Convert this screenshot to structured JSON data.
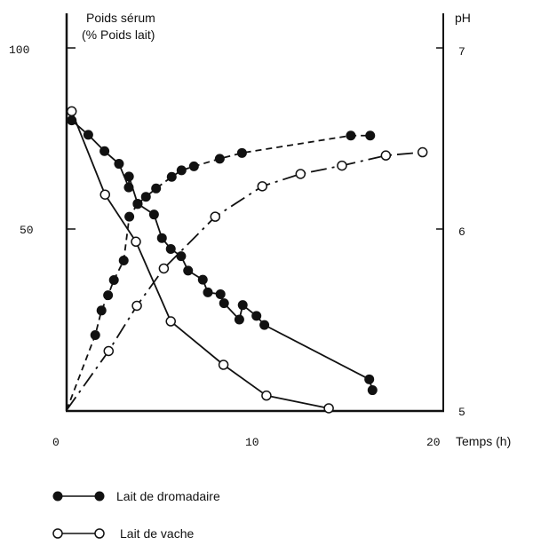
{
  "chart_data": {
    "type": "line",
    "title": "",
    "ylabel_left": [
      "Poids sérum",
      "(% Poids lait)"
    ],
    "ylabel_right": "pH",
    "xlabel": "Temps (h)",
    "xlim": [
      0,
      20
    ],
    "ylim_left": [
      0,
      100
    ],
    "ylim_right": [
      5,
      7
    ],
    "x_ticks": [
      "0",
      "10",
      "20"
    ],
    "y_ticks_left": [
      "50",
      "100"
    ],
    "y_ticks_right": [
      "5",
      "6",
      "7"
    ],
    "grid": false,
    "legend_placement": "bottom-left",
    "legend": [
      {
        "label": "Lait de dromadaire",
        "marker": "filled-circle"
      },
      {
        "label": "Lait de vache",
        "marker": "open-circle"
      }
    ],
    "series": [
      {
        "milk": "Lait de dromadaire",
        "measure": "pH",
        "axis": "right",
        "marker": "filled",
        "line": "solid",
        "x": [
          0.27,
          1.15,
          2.01,
          2.78,
          3.31,
          3.3,
          3.77,
          4.64,
          5.06,
          5.53,
          6.08,
          6.45,
          7.23,
          7.5,
          8.17,
          8.36,
          9.35,
          9.17,
          10.08,
          10.5,
          16.07,
          16.24
        ],
        "y": [
          6.6,
          6.52,
          6.43,
          6.36,
          6.29,
          6.23,
          6.14,
          6.08,
          5.95,
          5.89,
          5.85,
          5.77,
          5.72,
          5.65,
          5.64,
          5.59,
          5.58,
          5.5,
          5.52,
          5.47,
          5.17,
          5.11
        ]
      },
      {
        "milk": "Lait de dromadaire",
        "measure": "Poids sérum",
        "axis": "left",
        "marker": "filled",
        "line": "dashed",
        "x": [
          0,
          1.52,
          1.85,
          2.2,
          2.51,
          3.03,
          3.33,
          3.77,
          4.21,
          4.75,
          5.58,
          6.1,
          6.76,
          8.13,
          9.31,
          15.09,
          16.12
        ],
        "y": [
          0,
          20.7,
          27.5,
          31.7,
          35.9,
          41.3,
          53.4,
          56.9,
          58.9,
          61.2,
          64.4,
          66.2,
          67.3,
          69.4,
          71.0,
          75.8,
          75.8
        ]
      },
      {
        "milk": "Lait de vache",
        "measure": "pH",
        "axis": "right",
        "marker": "open",
        "line": "solid",
        "x": [
          0.27,
          2.04,
          3.68,
          5.53,
          8.33,
          10.61,
          13.92
        ],
        "y": [
          6.65,
          6.19,
          5.93,
          5.49,
          5.25,
          5.08,
          5.01
        ]
      },
      {
        "milk": "Lait de vache",
        "measure": "Poids sérum",
        "axis": "left",
        "marker": "open",
        "line": "dash-dot",
        "x": [
          0,
          2.23,
          3.73,
          5.16,
          7.89,
          10.39,
          12.42,
          14.62,
          16.95,
          18.9
        ],
        "y": [
          0,
          16.3,
          28.8,
          39.1,
          53.4,
          61.8,
          65.2,
          67.5,
          70.3,
          71.2
        ]
      }
    ]
  }
}
